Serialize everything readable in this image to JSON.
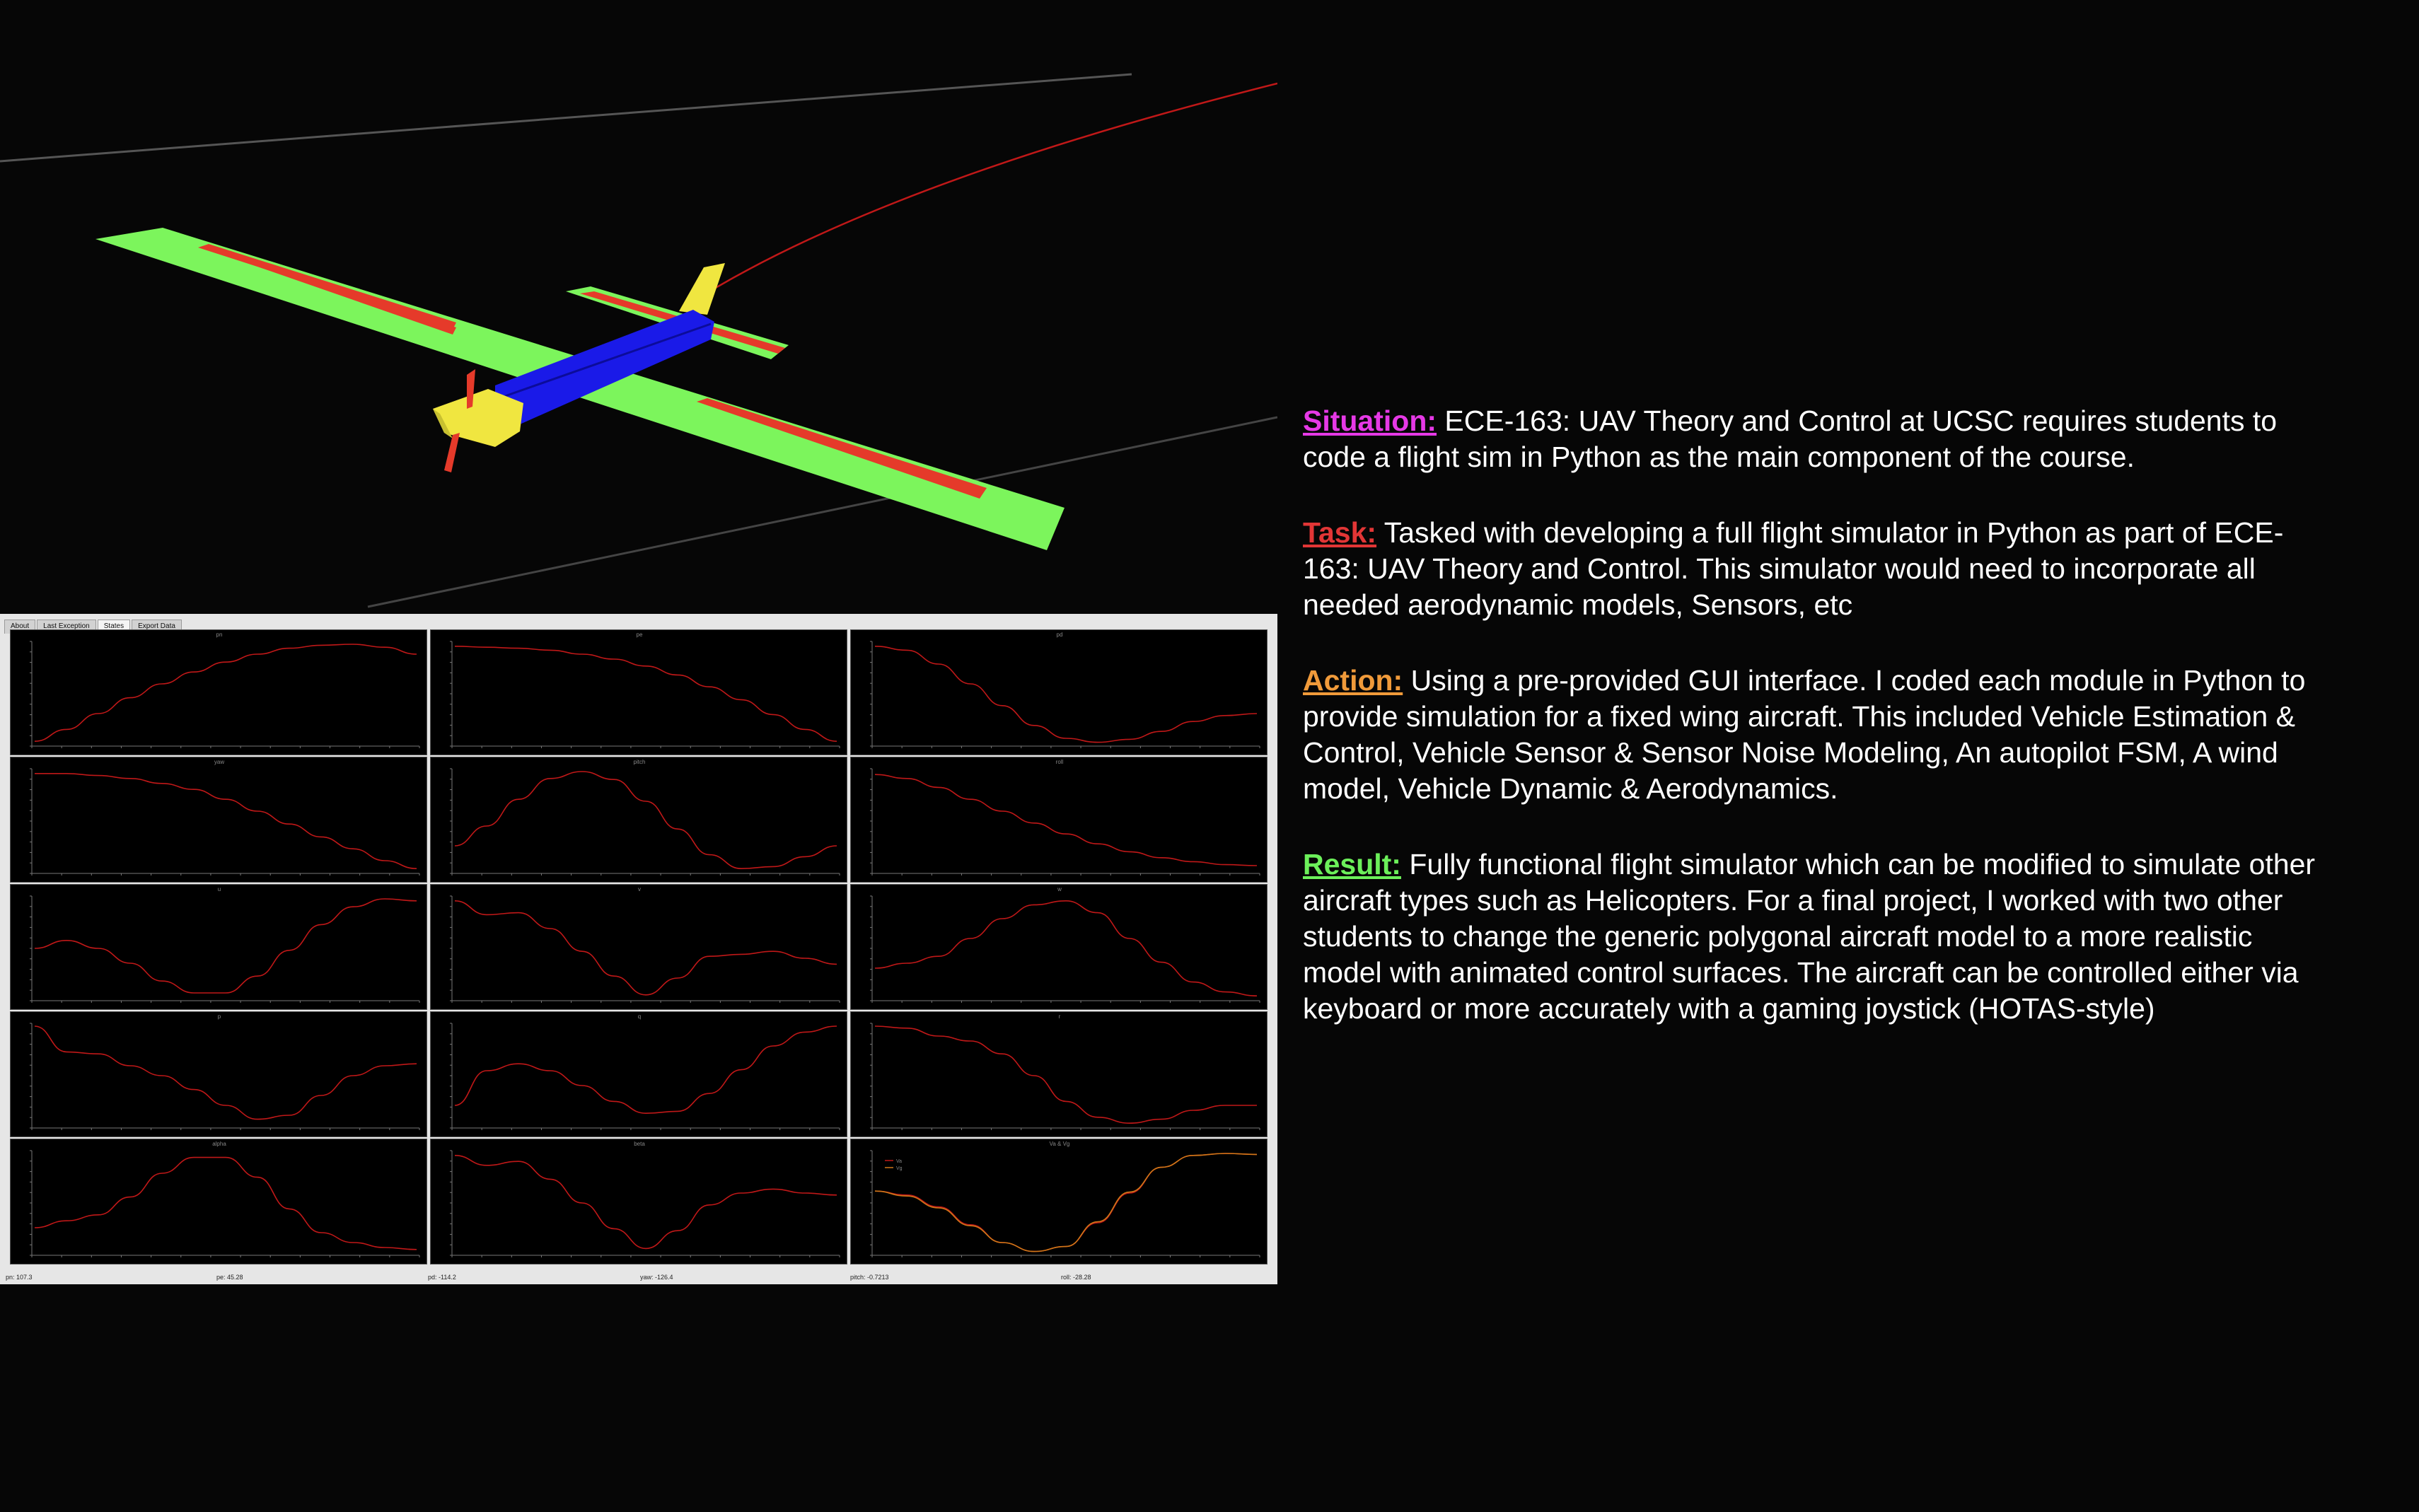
{
  "gui": {
    "tabs": [
      "About",
      "Last Exception",
      "States",
      "Export Data"
    ],
    "active_tab": "States",
    "status": [
      "pn: 107.3",
      "pe: 45.28",
      "pd: -114.2",
      "yaw: -126.4",
      "pitch: -0.7213",
      "roll: -28.28"
    ]
  },
  "star": {
    "situation": {
      "label": "Situation:",
      "text": " ECE-163: UAV Theory and Control at UCSC requires students to code a flight sim in Python as the main component of the course."
    },
    "task": {
      "label": "Task:",
      "text": " Tasked with developing a full flight simulator in Python as part of ECE-163: UAV Theory and Control. This simulator would need to incorporate all needed aerodynamic models, Sensors, etc"
    },
    "action": {
      "label": "Action:",
      "text": " Using a pre-provided GUI interface. I coded each module in Python to provide simulation for a fixed wing aircraft. This included Vehicle Estimation & Control, Vehicle Sensor & Sensor Noise Modeling, An autopilot FSM, A wind model, Vehicle Dynamic & Aerodynamics."
    },
    "result": {
      "label": "Result:",
      "text": " Fully functional flight simulator which can be modified to simulate other aircraft types such as Helicopters. For a final project, I worked with two other students to change the generic  polygonal aircraft model to a more realistic model with animated control surfaces. The aircraft can be controlled either via keyboard or more accurately with a gaming joystick (HOTAS-style)"
    }
  },
  "colors": {
    "situation": "#e639e6",
    "task": "#e23636",
    "action": "#f09a3a",
    "result": "#6cf05a",
    "wing": "#7cf55c",
    "aileron": "#e53a2a",
    "fuselage": "#1a1ae8",
    "nose": "#f0e640",
    "trace": "#c01818"
  },
  "chart_data": [
    {
      "type": "line",
      "title": "pn",
      "series": [
        {
          "values": [
            0.02,
            0.14,
            0.3,
            0.46,
            0.6,
            0.72,
            0.82,
            0.9,
            0.96,
            0.99,
            1,
            0.97,
            0.9
          ]
        }
      ]
    },
    {
      "type": "line",
      "title": "pe",
      "series": [
        {
          "values": [
            0.98,
            0.97,
            0.96,
            0.94,
            0.9,
            0.85,
            0.78,
            0.69,
            0.57,
            0.44,
            0.29,
            0.14,
            0.02
          ]
        }
      ]
    },
    {
      "type": "line",
      "title": "pd",
      "series": [
        {
          "values": [
            0.98,
            0.94,
            0.8,
            0.6,
            0.38,
            0.18,
            0.05,
            0.01,
            0.04,
            0.12,
            0.22,
            0.28,
            0.3
          ]
        }
      ]
    },
    {
      "type": "line",
      "title": "yaw",
      "series": [
        {
          "values": [
            0.98,
            0.98,
            0.96,
            0.93,
            0.88,
            0.82,
            0.72,
            0.6,
            0.47,
            0.34,
            0.22,
            0.1,
            0.02
          ]
        }
      ]
    },
    {
      "type": "line",
      "title": "pitch",
      "series": [
        {
          "values": [
            0.25,
            0.45,
            0.72,
            0.93,
            1,
            0.92,
            0.7,
            0.42,
            0.16,
            0.02,
            0.04,
            0.14,
            0.25
          ]
        }
      ]
    },
    {
      "type": "line",
      "title": "roll",
      "series": [
        {
          "values": [
            0.97,
            0.93,
            0.84,
            0.72,
            0.6,
            0.48,
            0.37,
            0.27,
            0.19,
            0.13,
            0.09,
            0.06,
            0.05
          ]
        }
      ]
    },
    {
      "type": "line",
      "title": "u",
      "series": [
        {
          "values": [
            0.5,
            0.58,
            0.5,
            0.35,
            0.17,
            0.05,
            0.05,
            0.22,
            0.48,
            0.74,
            0.92,
            1,
            0.98
          ]
        }
      ]
    },
    {
      "type": "line",
      "title": "v",
      "series": [
        {
          "values": [
            0.98,
            0.84,
            0.86,
            0.7,
            0.47,
            0.22,
            0.03,
            0.2,
            0.42,
            0.44,
            0.47,
            0.4,
            0.34
          ]
        }
      ]
    },
    {
      "type": "line",
      "title": "w",
      "series": [
        {
          "values": [
            0.3,
            0.35,
            0.42,
            0.6,
            0.8,
            0.94,
            0.98,
            0.86,
            0.6,
            0.36,
            0.16,
            0.06,
            0.02
          ]
        }
      ]
    },
    {
      "type": "line",
      "title": "p",
      "series": [
        {
          "values": [
            1,
            0.74,
            0.72,
            0.6,
            0.5,
            0.36,
            0.2,
            0.06,
            0.1,
            0.3,
            0.5,
            0.6,
            0.62
          ]
        }
      ]
    },
    {
      "type": "line",
      "title": "q",
      "series": [
        {
          "values": [
            0.2,
            0.55,
            0.62,
            0.55,
            0.4,
            0.24,
            0.12,
            0.14,
            0.32,
            0.56,
            0.8,
            0.94,
            1
          ]
        }
      ]
    },
    {
      "type": "line",
      "title": "r",
      "series": [
        {
          "values": [
            1,
            0.98,
            0.9,
            0.85,
            0.72,
            0.5,
            0.24,
            0.08,
            0.02,
            0.06,
            0.15,
            0.2,
            0.2
          ]
        }
      ]
    },
    {
      "type": "line",
      "title": "alpha",
      "series": [
        {
          "values": [
            0.25,
            0.32,
            0.38,
            0.56,
            0.8,
            0.96,
            0.96,
            0.76,
            0.44,
            0.2,
            0.1,
            0.05,
            0.03
          ]
        }
      ]
    },
    {
      "type": "line",
      "title": "beta",
      "series": [
        {
          "values": [
            0.98,
            0.88,
            0.92,
            0.74,
            0.5,
            0.24,
            0.04,
            0.22,
            0.48,
            0.6,
            0.64,
            0.6,
            0.58
          ]
        }
      ]
    },
    {
      "type": "line",
      "title": "Va & Vg",
      "legend": [
        "Va",
        "Vg"
      ],
      "series": [
        {
          "name": "Va",
          "values": [
            0.62,
            0.58,
            0.46,
            0.28,
            0.1,
            0.01,
            0.06,
            0.3,
            0.6,
            0.86,
            0.98,
            1,
            0.99
          ]
        },
        {
          "name": "Vg",
          "values": [
            0.62,
            0.57,
            0.45,
            0.27,
            0.1,
            0.01,
            0.06,
            0.31,
            0.61,
            0.86,
            0.98,
            1,
            0.99
          ]
        }
      ]
    }
  ]
}
